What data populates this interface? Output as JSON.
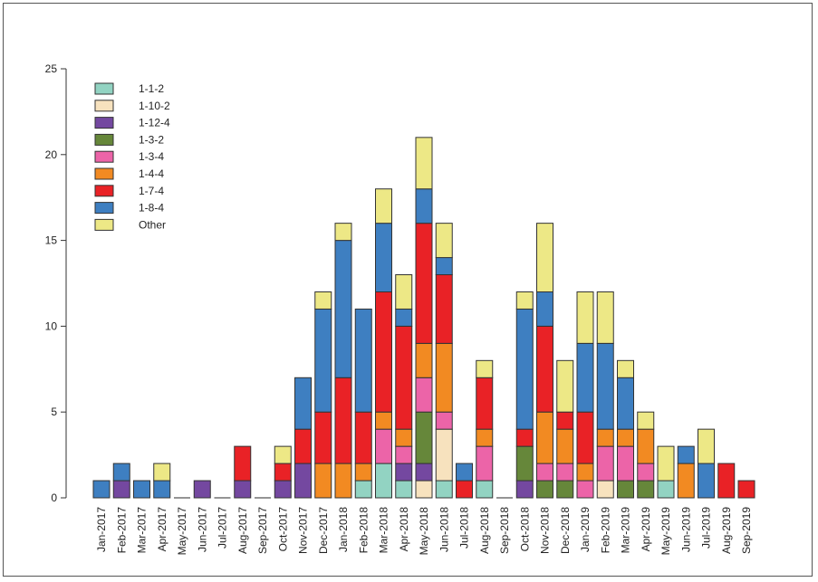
{
  "chart_data": {
    "type": "bar",
    "stacked": true,
    "title": "",
    "xlabel": "",
    "ylabel": "",
    "ylim": [
      0,
      25
    ],
    "yticks": [
      0,
      5,
      10,
      15,
      20,
      25
    ],
    "grid": false,
    "legend_position": "top-left",
    "categories": [
      "Jan-2017",
      "Feb-2017",
      "Mar-2017",
      "Apr-2017",
      "May-2017",
      "Jun-2017",
      "Jul-2017",
      "Aug-2017",
      "Sep-2017",
      "Oct-2017",
      "Nov-2017",
      "Dec-2017",
      "Jan-2018",
      "Feb-2018",
      "Mar-2018",
      "Apr-2018",
      "May-2018",
      "Jun-2018",
      "Jul-2018",
      "Aug-2018",
      "Sep-2018",
      "Oct-2018",
      "Nov-2018",
      "Dec-2018",
      "Jan-2019",
      "Feb-2019",
      "Mar-2019",
      "Apr-2019",
      "May-2019",
      "Jun-2019",
      "Jul-2019",
      "Aug-2019",
      "Sep-2019"
    ],
    "series": [
      {
        "name": "1-1-2",
        "color": "#92d3c2",
        "values": [
          0,
          0,
          0,
          0,
          0,
          0,
          0,
          0,
          0,
          0,
          0,
          0,
          0,
          1,
          2,
          1,
          0,
          1,
          0,
          1,
          0,
          0,
          0,
          0,
          0,
          0,
          0,
          0,
          1,
          0,
          0,
          0,
          0
        ]
      },
      {
        "name": "1-10-2",
        "color": "#f7e2be",
        "values": [
          0,
          0,
          0,
          0,
          0,
          0,
          0,
          0,
          0,
          0,
          0,
          0,
          0,
          0,
          0,
          0,
          1,
          3,
          0,
          0,
          0,
          0,
          0,
          0,
          0,
          1,
          0,
          0,
          0,
          0,
          0,
          0,
          0
        ]
      },
      {
        "name": "1-12-4",
        "color": "#7448a0",
        "values": [
          0,
          1,
          0,
          0,
          0,
          1,
          0,
          1,
          0,
          1,
          2,
          0,
          0,
          0,
          0,
          1,
          1,
          0,
          0,
          0,
          0,
          1,
          0,
          0,
          0,
          0,
          0,
          0,
          0,
          0,
          0,
          0,
          0
        ]
      },
      {
        "name": "1-3-2",
        "color": "#66873a",
        "values": [
          0,
          0,
          0,
          0,
          0,
          0,
          0,
          0,
          0,
          0,
          0,
          0,
          0,
          0,
          0,
          0,
          3,
          0,
          0,
          0,
          0,
          2,
          1,
          1,
          0,
          0,
          1,
          1,
          0,
          0,
          0,
          0,
          0
        ]
      },
      {
        "name": "1-3-4",
        "color": "#ec64a8",
        "values": [
          0,
          0,
          0,
          0,
          0,
          0,
          0,
          0,
          0,
          0,
          0,
          0,
          0,
          0,
          2,
          1,
          2,
          1,
          0,
          2,
          0,
          0,
          1,
          1,
          1,
          2,
          2,
          1,
          0,
          0,
          0,
          0,
          0
        ]
      },
      {
        "name": "1-4-4",
        "color": "#f28a22",
        "values": [
          0,
          0,
          0,
          0,
          0,
          0,
          0,
          0,
          0,
          0,
          0,
          2,
          2,
          1,
          1,
          1,
          2,
          4,
          0,
          1,
          0,
          0,
          3,
          2,
          1,
          1,
          1,
          2,
          0,
          2,
          0,
          0,
          0
        ]
      },
      {
        "name": "1-7-4",
        "color": "#e92226",
        "values": [
          0,
          0,
          0,
          0,
          0,
          0,
          0,
          2,
          0,
          1,
          2,
          3,
          5,
          3,
          7,
          6,
          7,
          4,
          1,
          3,
          0,
          1,
          5,
          1,
          3,
          0,
          0,
          0,
          0,
          0,
          0,
          2,
          1
        ]
      },
      {
        "name": "1-8-4",
        "color": "#3e7fc1",
        "values": [
          1,
          1,
          1,
          1,
          0,
          0,
          0,
          0,
          0,
          0,
          3,
          6,
          8,
          6,
          4,
          1,
          2,
          1,
          1,
          0,
          0,
          7,
          2,
          0,
          4,
          5,
          3,
          0,
          0,
          1,
          2,
          0,
          0
        ]
      },
      {
        "name": "Other",
        "color": "#ede886",
        "values": [
          0,
          0,
          0,
          1,
          0,
          0,
          0,
          0,
          0,
          1,
          0,
          1,
          1,
          0,
          2,
          2,
          3,
          2,
          0,
          1,
          0,
          1,
          4,
          3,
          3,
          3,
          1,
          1,
          2,
          0,
          2,
          0,
          0
        ]
      }
    ]
  }
}
